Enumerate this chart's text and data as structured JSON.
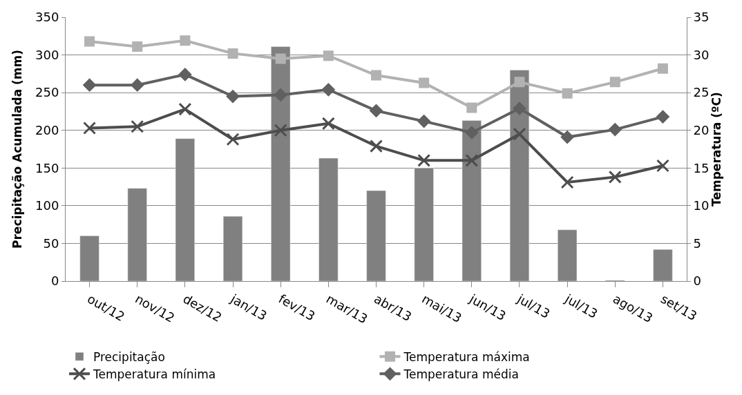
{
  "chart_data": {
    "type": "bar",
    "ylabel": "Precipitação Acumulada (mm)",
    "y2label": "Temperatura (ºC)",
    "categories": [
      "out/12",
      "nov/12",
      "dez/12",
      "jan/13",
      "fev/13",
      "mar/13",
      "abr/13",
      "mai/13",
      "jun/13",
      "jul/13",
      "jul/13",
      "ago/13",
      "set/13"
    ],
    "series": [
      {
        "name": "Precipitação",
        "color": "#808080",
        "values": [
          60,
          123,
          189,
          86,
          311,
          163,
          120,
          150,
          213,
          280,
          68,
          1,
          42
        ]
      },
      {
        "name": "Temperatura máxima",
        "type": "line",
        "axis": "y2",
        "marker": "square",
        "color": "#b2b2b2",
        "values": [
          31.8,
          31.1,
          31.9,
          30.2,
          29.5,
          29.9,
          27.3,
          26.3,
          23.0,
          26.4,
          24.9,
          26.4,
          28.2
        ]
      },
      {
        "name": "Temperatura mínima",
        "type": "line",
        "axis": "y2",
        "marker": "cross",
        "color": "#4d4d4d",
        "values": [
          20.3,
          20.5,
          22.8,
          18.8,
          20.0,
          20.9,
          17.9,
          16.0,
          16.0,
          19.5,
          13.1,
          13.8,
          15.3
        ]
      },
      {
        "name": "Temperatura média",
        "type": "line",
        "axis": "y2",
        "marker": "diamond",
        "color": "#606060",
        "values": [
          26.0,
          26.0,
          27.4,
          24.5,
          24.7,
          25.4,
          22.6,
          21.2,
          19.7,
          22.9,
          19.1,
          20.1,
          21.8
        ]
      }
    ],
    "ylim": [
      0,
      350
    ],
    "yticks": [
      0,
      50,
      100,
      150,
      200,
      250,
      300,
      350
    ],
    "y2lim": [
      0,
      35
    ],
    "y2ticks": [
      0,
      5,
      10,
      15,
      20,
      25,
      30,
      35
    ],
    "grid": "y",
    "legend": "bottom"
  }
}
